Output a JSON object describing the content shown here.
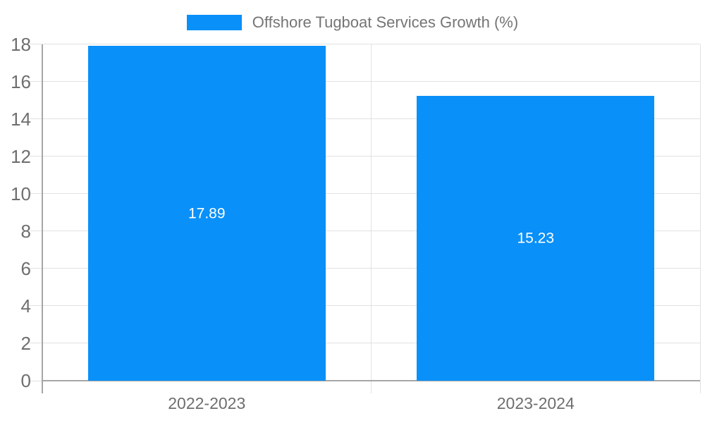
{
  "chart_data": {
    "type": "bar",
    "title": "Offshore Tugboat Services Growth (%)",
    "categories": [
      "2022-2023",
      "2023-2024"
    ],
    "series": [
      {
        "name": "Offshore Tugboat Services Growth (%)",
        "values": [
          17.89,
          15.23
        ]
      }
    ],
    "value_labels": [
      "17.89",
      "15.23"
    ],
    "xlabel": "",
    "ylabel": "",
    "ylim": [
      0,
      18
    ],
    "yticks": [
      0,
      2,
      4,
      6,
      8,
      10,
      12,
      14,
      16,
      18
    ],
    "grid": true,
    "legend_position": "top",
    "colors": {
      "bar": "#0990f9",
      "bar_label": "#ffffff",
      "axis_line": "#a6a6a6",
      "gridline": "#e2e2e2",
      "tick_text": "#6e6e6e",
      "legend_text": "#757575",
      "background": "#ffffff"
    }
  }
}
